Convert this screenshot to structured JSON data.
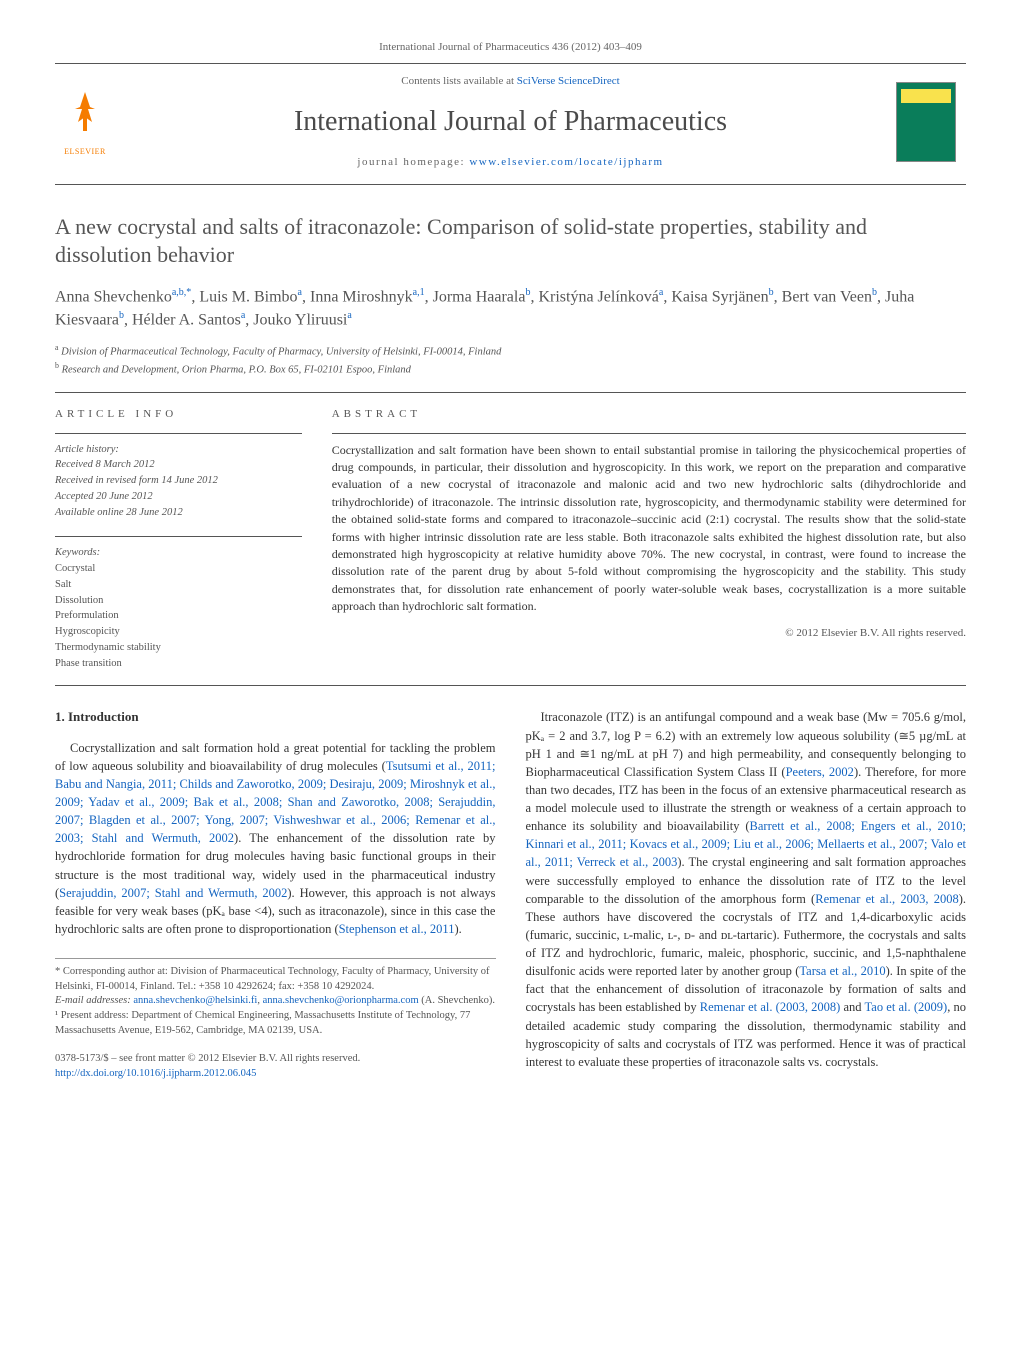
{
  "journal_header": "International Journal of Pharmaceutics 436 (2012) 403–409",
  "banner": {
    "contents_prefix": "Contents lists available at ",
    "contents_link": "SciVerse ScienceDirect",
    "journal_name": "International Journal of Pharmaceutics",
    "homepage_prefix": "journal homepage: ",
    "homepage_link": "www.elsevier.com/locate/ijpharm",
    "elsevier_brand": "ELSEVIER"
  },
  "title": "A new cocrystal and salts of itraconazole: Comparison of solid-state properties, stability and dissolution behavior",
  "authors_html": "Anna Shevchenko<sup>a,b,*</sup>, Luis M. Bimbo<sup>a</sup>, Inna Miroshnyk<sup>a,1</sup>, Jorma Haarala<sup>b</sup>, Kristýna Jelínková<sup>a</sup>, Kaisa Syrjänen<sup>b</sup>, Bert van Veen<sup>b</sup>, Juha Kiesvaara<sup>b</sup>, Hélder A. Santos<sup>a</sup>, Jouko Yliruusi<sup>a</sup>",
  "affiliations": {
    "a": "Division of Pharmaceutical Technology, Faculty of Pharmacy, University of Helsinki, FI-00014, Finland",
    "b": "Research and Development, Orion Pharma, P.O. Box 65, FI-02101 Espoo, Finland"
  },
  "info": {
    "label": "ARTICLE INFO",
    "history_hdr": "Article history:",
    "received": "Received 8 March 2012",
    "revised": "Received in revised form 14 June 2012",
    "accepted": "Accepted 20 June 2012",
    "online": "Available online 28 June 2012",
    "keywords_hdr": "Keywords:",
    "keywords": [
      "Cocrystal",
      "Salt",
      "Dissolution",
      "Preformulation",
      "Hygroscopicity",
      "Thermodynamic stability",
      "Phase transition"
    ]
  },
  "abstract": {
    "label": "ABSTRACT",
    "text": "Cocrystallization and salt formation have been shown to entail substantial promise in tailoring the physicochemical properties of drug compounds, in particular, their dissolution and hygroscopicity. In this work, we report on the preparation and comparative evaluation of a new cocrystal of itraconazole and malonic acid and two new hydrochloric salts (dihydrochloride and trihydrochloride) of itraconazole. The intrinsic dissolution rate, hygroscopicity, and thermodynamic stability were determined for the obtained solid-state forms and compared to itraconazole–succinic acid (2:1) cocrystal. The results show that the solid-state forms with higher intrinsic dissolution rate are less stable. Both itraconazole salts exhibited the highest dissolution rate, but also demonstrated high hygroscopicity at relative humidity above 70%. The new cocrystal, in contrast, were found to increase the dissolution rate of the parent drug by about 5-fold without compromising the hygroscopicity and the stability. This study demonstrates that, for dissolution rate enhancement of poorly water-soluble weak bases, cocrystallization is a more suitable approach than hydrochloric salt formation.",
    "copyright": "© 2012 Elsevier B.V. All rights reserved."
  },
  "section1": {
    "heading": "1. Introduction",
    "p1_a": "Cocrystallization and salt formation hold a great potential for tackling the problem of low aqueous solubility and bioavailability of drug molecules (",
    "p1_cite": "Tsutsumi et al., 2011; Babu and Nangia, 2011; Childs and Zaworotko, 2009; Desiraju, 2009; Miroshnyk et al., 2009; Yadav et al., 2009; Bak et al., 2008; Shan and Zaworotko, 2008; Serajuddin, 2007; Blagden et al., 2007; Yong, 2007; Vishweshwar et al., 2006; Remenar et al., 2003; Stahl and Wermuth, 2002",
    "p1_b": "). The enhancement of the dissolution rate by hydrochloride formation for drug molecules having basic functional groups in their structure is the most traditional way, widely used in the pharmaceutical industry (",
    "p1_cite2": "Serajuddin, 2007; Stahl and Wermuth, 2002",
    "p1_c": "). However, this approach is not always feasible for very weak bases (pKₐ base <4), such as itraconazole), since in this case the hydrochloric salts are often prone to disproportionation (",
    "p1_cite3": "Stephenson et al., 2011",
    "p1_d": ").",
    "p2_a": "Itraconazole (ITZ) is an antifungal compound and a weak base (Mw = 705.6 g/mol, pKₐ = 2 and 3.7, log P = 6.2) with an extremely low aqueous solubility (≅5 µg/mL at pH 1 and ≅1 ng/mL at pH 7) and high permeability, and consequently belonging to Biopharmaceutical Classification System Class II (",
    "p2_cite1": "Peeters, 2002",
    "p2_b": "). Therefore, for more than two decades, ITZ has been in the focus of an extensive pharmaceutical research as a model molecule used to illustrate the strength or weakness of a certain approach to enhance its solubility and bioavailability (",
    "p2_cite2": "Barrett et al., 2008; Engers et al., 2010; Kinnari et al., 2011; Kovacs et al., 2009; Liu et al., 2006; Mellaerts et al., 2007; Valo et al., 2011; Verreck et al., 2003",
    "p2_c": "). The crystal engineering and salt formation approaches were successfully employed to enhance the dissolution rate of ITZ to the level comparable to the dissolution of the amorphous form (",
    "p2_cite3": "Remenar et al., 2003, 2008",
    "p2_d": "). These authors have discovered the cocrystals of ITZ and 1,4-dicarboxylic acids (fumaric, succinic, ʟ-malic, ʟ-, ᴅ- and ᴅʟ-tartaric). Futhermore, the cocrystals and salts of ITZ and hydrochloric, fumaric, maleic, phosphoric, succinic, and 1,5-naphthalene disulfonic acids were reported later by another group (",
    "p2_cite4": "Tarsa et al., 2010",
    "p2_e": "). In spite of the fact that the enhancement of dissolution of itraconazole by formation of salts and cocrystals has been established by ",
    "p2_cite5": "Remenar et al. (2003, 2008)",
    "p2_f": " and ",
    "p2_cite6": "Tao et al. (2009)",
    "p2_g": ", no detailed academic study comparing the dissolution, thermodynamic stability and hygroscopicity of salts and cocrystals of ITZ was performed. Hence it was of practical interest to evaluate these properties of itraconazole salts vs. cocrystals."
  },
  "footnotes": {
    "corr": "* Corresponding author at: Division of Pharmaceutical Technology, Faculty of Pharmacy, University of Helsinki, FI-00014, Finland. Tel.: +358 10 4292624; fax: +358 10 4292024.",
    "email_label": "E-mail addresses: ",
    "email1": "anna.shevchenko@helsinki.fi",
    "email_sep": ", ",
    "email2": "anna.shevchenko@orionpharma.com",
    "email_tail": " (A. Shevchenko).",
    "present": "¹ Present address: Department of Chemical Engineering, Massachusetts Institute of Technology, 77 Massachusetts Avenue, E19-562, Cambridge, MA 02139, USA."
  },
  "doi": {
    "line1": "0378-5173/$ – see front matter © 2012 Elsevier B.V. All rights reserved.",
    "link": "http://dx.doi.org/10.1016/j.ijpharm.2012.06.045"
  },
  "colors": {
    "link": "#1565c0",
    "text": "#333333",
    "muted": "#555555",
    "elsevier": "#f57c00"
  }
}
